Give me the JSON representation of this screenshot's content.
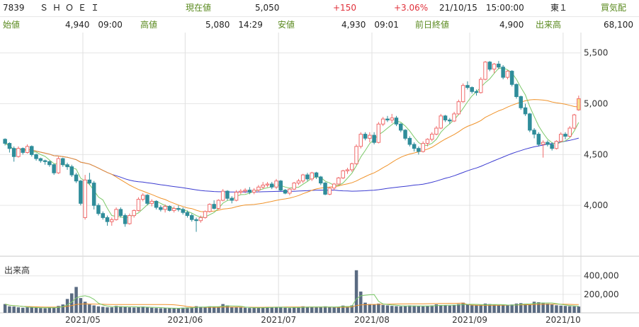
{
  "header": {
    "code": "7839",
    "name": "ＳＨＯＥＩ",
    "current_label": "現在値",
    "current_value": "5,050",
    "change": "+150",
    "change_pct": "+3.06%",
    "datetime": "21/10/15　15:00:00",
    "market": "東１",
    "buy_sell_label": "買気配",
    "open_label": "始値",
    "open_value": "4,940　09:00",
    "high_label": "高値",
    "high_value": "5,080　14:29",
    "low_label": "安値",
    "low_value": "4,930　09:01",
    "prev_close_label": "前日終値",
    "prev_close_value": "4,900",
    "volume_label": "出来高",
    "volume_value": "68,100"
  },
  "chart_data": {
    "type": "candlestick",
    "price_ticks": [
      "5,500",
      "5,000",
      "4,500",
      "4,000"
    ],
    "volume_label": "出来高",
    "volume_ticks": [
      "400,000",
      "200,000"
    ],
    "x_tick_labels": [
      "2021/05",
      "2021/06",
      "2021/07",
      "2021/08",
      "2021/09",
      "2021/10"
    ],
    "ohlc": [
      [
        4650,
        4660,
        4590,
        4610
      ],
      [
        4610,
        4620,
        4520,
        4560
      ],
      [
        4560,
        4580,
        4430,
        4480
      ],
      [
        4480,
        4580,
        4470,
        4560
      ],
      [
        4560,
        4570,
        4500,
        4520
      ],
      [
        4520,
        4600,
        4510,
        4580
      ],
      [
        4580,
        4590,
        4480,
        4500
      ],
      [
        4500,
        4510,
        4440,
        4460
      ],
      [
        4460,
        4470,
        4420,
        4440
      ],
      [
        4440,
        4450,
        4400,
        4430
      ],
      [
        4430,
        4440,
        4380,
        4400
      ],
      [
        4400,
        4410,
        4300,
        4320
      ],
      [
        4320,
        4480,
        4310,
        4460
      ],
      [
        4460,
        4470,
        4380,
        4400
      ],
      [
        4400,
        4420,
        4350,
        4380
      ],
      [
        4380,
        4400,
        4280,
        4300
      ],
      [
        4300,
        4320,
        4220,
        4240
      ],
      [
        4240,
        4250,
        4000,
        4020
      ],
      [
        3880,
        4300,
        3860,
        4250
      ],
      [
        4250,
        4320,
        4200,
        4220
      ],
      [
        4220,
        4240,
        3960,
        4000
      ],
      [
        4000,
        4020,
        3900,
        3920
      ],
      [
        3920,
        3940,
        3860,
        3880
      ],
      [
        3880,
        3900,
        3800,
        3840
      ],
      [
        3840,
        3880,
        3800,
        3860
      ],
      [
        3860,
        3980,
        3850,
        3960
      ],
      [
        3960,
        3980,
        3880,
        3900
      ],
      [
        3900,
        3920,
        3790,
        3820
      ],
      [
        3820,
        3920,
        3810,
        3900
      ],
      [
        3900,
        3960,
        3880,
        3950
      ],
      [
        3950,
        4080,
        3940,
        4060
      ],
      [
        4060,
        4120,
        4040,
        4100
      ],
      [
        4100,
        4110,
        4000,
        4020
      ],
      [
        4020,
        4060,
        3990,
        4040
      ],
      [
        4040,
        4050,
        3960,
        3980
      ],
      [
        3980,
        4000,
        3940,
        3960
      ],
      [
        3960,
        4010,
        3930,
        3990
      ],
      [
        3990,
        4000,
        3940,
        3950
      ],
      [
        3950,
        3990,
        3930,
        3970
      ],
      [
        3970,
        4000,
        3940,
        3960
      ],
      [
        3960,
        3980,
        3910,
        3930
      ],
      [
        3930,
        3950,
        3880,
        3900
      ],
      [
        3900,
        3920,
        3840,
        3860
      ],
      [
        3860,
        3880,
        3740,
        3850
      ],
      [
        3850,
        3900,
        3830,
        3880
      ],
      [
        3880,
        3950,
        3870,
        3940
      ],
      [
        3940,
        4020,
        3930,
        4010
      ],
      [
        4010,
        4050,
        3960,
        3970
      ],
      [
        3970,
        4060,
        3960,
        4050
      ],
      [
        4050,
        4160,
        4040,
        4140
      ],
      [
        4140,
        4150,
        4050,
        4070
      ],
      [
        4070,
        4090,
        4020,
        4050
      ],
      [
        4050,
        4150,
        4040,
        4130
      ],
      [
        4130,
        4160,
        4110,
        4140
      ],
      [
        4140,
        4170,
        4120,
        4150
      ],
      [
        4150,
        4180,
        4110,
        4130
      ],
      [
        4130,
        4170,
        4110,
        4150
      ],
      [
        4150,
        4200,
        4130,
        4180
      ],
      [
        4180,
        4230,
        4160,
        4200
      ],
      [
        4200,
        4230,
        4180,
        4210
      ],
      [
        4210,
        4230,
        4160,
        4180
      ],
      [
        4180,
        4260,
        4160,
        4240
      ],
      [
        4240,
        4250,
        4140,
        4150
      ],
      [
        4150,
        4160,
        4110,
        4120
      ],
      [
        4120,
        4170,
        4100,
        4160
      ],
      [
        4160,
        4230,
        4150,
        4220
      ],
      [
        4220,
        4260,
        4200,
        4240
      ],
      [
        4240,
        4310,
        4220,
        4300
      ],
      [
        4300,
        4320,
        4240,
        4260
      ],
      [
        4260,
        4330,
        4240,
        4320
      ],
      [
        4320,
        4330,
        4260,
        4280
      ],
      [
        4280,
        4290,
        4200,
        4220
      ],
      [
        4220,
        4230,
        4100,
        4110
      ],
      [
        4110,
        4180,
        4100,
        4170
      ],
      [
        4170,
        4220,
        4150,
        4210
      ],
      [
        4210,
        4280,
        4200,
        4270
      ],
      [
        4270,
        4350,
        4260,
        4340
      ],
      [
        4340,
        4370,
        4310,
        4350
      ],
      [
        4350,
        4420,
        4330,
        4410
      ],
      [
        4410,
        4600,
        4400,
        4580
      ],
      [
        4580,
        4720,
        4560,
        4700
      ],
      [
        4700,
        4720,
        4640,
        4660
      ],
      [
        4660,
        4720,
        4620,
        4690
      ],
      [
        4690,
        4720,
        4600,
        4620
      ],
      [
        4620,
        4820,
        4610,
        4800
      ],
      [
        4800,
        4870,
        4780,
        4850
      ],
      [
        4850,
        4880,
        4820,
        4840
      ],
      [
        4840,
        4900,
        4810,
        4860
      ],
      [
        4860,
        4880,
        4780,
        4800
      ],
      [
        4800,
        4810,
        4720,
        4740
      ],
      [
        4740,
        4750,
        4640,
        4660
      ],
      [
        4660,
        4680,
        4580,
        4600
      ],
      [
        4600,
        4620,
        4530,
        4560
      ],
      [
        4560,
        4580,
        4500,
        4530
      ],
      [
        4530,
        4630,
        4520,
        4610
      ],
      [
        4610,
        4660,
        4580,
        4650
      ],
      [
        4650,
        4720,
        4630,
        4700
      ],
      [
        4700,
        4780,
        4690,
        4760
      ],
      [
        4760,
        4900,
        4750,
        4880
      ],
      [
        4880,
        4890,
        4820,
        4840
      ],
      [
        4840,
        4860,
        4800,
        4830
      ],
      [
        4830,
        4920,
        4820,
        4900
      ],
      [
        4900,
        5040,
        4890,
        5020
      ],
      [
        5020,
        5200,
        5010,
        5180
      ],
      [
        5180,
        5220,
        5140,
        5160
      ],
      [
        5160,
        5170,
        5100,
        5120
      ],
      [
        5120,
        5140,
        5080,
        5110
      ],
      [
        5110,
        5260,
        5100,
        5240
      ],
      [
        5240,
        5420,
        5230,
        5410
      ],
      [
        5410,
        5420,
        5320,
        5340
      ],
      [
        5340,
        5400,
        5300,
        5390
      ],
      [
        5390,
        5420,
        5340,
        5360
      ],
      [
        5360,
        5380,
        5240,
        5260
      ],
      [
        5260,
        5330,
        5240,
        5320
      ],
      [
        5320,
        5330,
        5170,
        5190
      ],
      [
        5190,
        5200,
        5050,
        5070
      ],
      [
        5070,
        5080,
        4940,
        4960
      ],
      [
        4960,
        5000,
        4880,
        4900
      ],
      [
        4900,
        4910,
        4720,
        4740
      ],
      [
        4740,
        4760,
        4660,
        4700
      ],
      [
        4700,
        4720,
        4580,
        4600
      ],
      [
        4600,
        4640,
        4470,
        4620
      ],
      [
        4620,
        4640,
        4580,
        4600
      ],
      [
        4600,
        4620,
        4540,
        4560
      ],
      [
        4560,
        4640,
        4550,
        4630
      ],
      [
        4630,
        4720,
        4620,
        4700
      ],
      [
        4700,
        4720,
        4650,
        4680
      ],
      [
        4680,
        4780,
        4670,
        4760
      ],
      [
        4760,
        4900,
        4750,
        4890
      ],
      [
        4940,
        5080,
        4930,
        5050
      ]
    ],
    "volume": [
      95000,
      70000,
      68000,
      60000,
      55000,
      60000,
      58000,
      55000,
      52000,
      50000,
      60000,
      58000,
      75000,
      90000,
      150000,
      210000,
      280000,
      160000,
      120000,
      90000,
      80000,
      70000,
      65000,
      60000,
      60000,
      75000,
      70000,
      65000,
      60000,
      58000,
      62000,
      68000,
      60000,
      55000,
      52000,
      50000,
      50000,
      52000,
      50000,
      48000,
      55000,
      58000,
      60000,
      72000,
      66000,
      62000,
      70000,
      65000,
      68000,
      95000,
      80000,
      65000,
      60000,
      58000,
      55000,
      52000,
      55000,
      58000,
      60000,
      62000,
      58000,
      65000,
      60000,
      55000,
      52000,
      60000,
      62000,
      70000,
      65000,
      62000,
      60000,
      62000,
      70000,
      65000,
      62000,
      65000,
      78000,
      72000,
      80000,
      460000,
      230000,
      110000,
      95000,
      90000,
      100000,
      85000,
      80000,
      75000,
      72000,
      70000,
      75000,
      80000,
      78000,
      72000,
      70000,
      75000,
      80000,
      92000,
      85000,
      80000,
      78000,
      85000,
      95000,
      110000,
      90000,
      82000,
      80000,
      85000,
      100000,
      95000,
      88000,
      80000,
      82000,
      80000,
      90000,
      100000,
      105000,
      98000,
      90000,
      120000,
      115000,
      110000,
      100000,
      90000,
      82000,
      78000,
      75000,
      72000,
      70000,
      68100
    ],
    "price_range": [
      3500,
      5700
    ],
    "volume_range": [
      0,
      520000
    ],
    "colors": {
      "up": "#f06b6b",
      "down": "#2f8d9a",
      "ma5": "#7cc96a",
      "ma25": "#f0932b",
      "ma75": "#3b3bd1",
      "volume": "#5a6b82",
      "last_up_body": "#f7e08c"
    }
  }
}
